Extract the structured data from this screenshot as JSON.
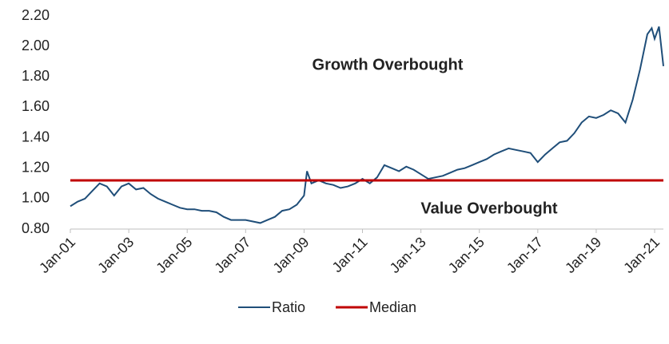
{
  "chart_data": {
    "type": "line",
    "annotations": [
      "Growth Overbought",
      "Value Overbought"
    ],
    "x": [
      2001.0,
      2001.25,
      2001.5,
      2001.75,
      2002.0,
      2002.25,
      2002.5,
      2002.75,
      2003.0,
      2003.25,
      2003.5,
      2003.75,
      2004.0,
      2004.25,
      2004.5,
      2004.75,
      2005.0,
      2005.25,
      2005.5,
      2005.75,
      2006.0,
      2006.25,
      2006.5,
      2006.75,
      2007.0,
      2007.25,
      2007.5,
      2007.75,
      2008.0,
      2008.25,
      2008.5,
      2008.75,
      2009.0,
      2009.1,
      2009.25,
      2009.5,
      2009.75,
      2010.0,
      2010.25,
      2010.5,
      2010.75,
      2011.0,
      2011.25,
      2011.5,
      2011.75,
      2012.0,
      2012.25,
      2012.5,
      2012.75,
      2013.0,
      2013.25,
      2013.5,
      2013.75,
      2014.0,
      2014.25,
      2014.5,
      2014.75,
      2015.0,
      2015.25,
      2015.5,
      2015.75,
      2016.0,
      2016.25,
      2016.5,
      2016.75,
      2017.0,
      2017.25,
      2017.5,
      2017.75,
      2018.0,
      2018.25,
      2018.5,
      2018.75,
      2019.0,
      2019.25,
      2019.5,
      2019.75,
      2020.0,
      2020.25,
      2020.5,
      2020.75,
      2020.9,
      2021.0,
      2021.15,
      2021.3
    ],
    "series": [
      {
        "name": "Ratio",
        "color": "#1f4e79",
        "values": [
          0.95,
          0.98,
          1.0,
          1.05,
          1.1,
          1.08,
          1.02,
          1.08,
          1.1,
          1.06,
          1.07,
          1.03,
          1.0,
          0.98,
          0.96,
          0.94,
          0.93,
          0.93,
          0.92,
          0.92,
          0.91,
          0.88,
          0.86,
          0.86,
          0.86,
          0.85,
          0.84,
          0.86,
          0.88,
          0.92,
          0.93,
          0.96,
          1.02,
          1.18,
          1.1,
          1.12,
          1.1,
          1.09,
          1.07,
          1.08,
          1.1,
          1.13,
          1.1,
          1.14,
          1.22,
          1.2,
          1.18,
          1.21,
          1.19,
          1.16,
          1.13,
          1.14,
          1.15,
          1.17,
          1.19,
          1.2,
          1.22,
          1.24,
          1.26,
          1.29,
          1.31,
          1.33,
          1.32,
          1.31,
          1.3,
          1.24,
          1.29,
          1.33,
          1.37,
          1.38,
          1.43,
          1.5,
          1.54,
          1.53,
          1.55,
          1.58,
          1.56,
          1.5,
          1.65,
          1.85,
          2.08,
          2.12,
          2.05,
          2.13,
          1.87
        ]
      },
      {
        "name": "Median",
        "color": "#c00000",
        "values": [
          1.12,
          1.12,
          1.12,
          1.12,
          1.12,
          1.12,
          1.12,
          1.12,
          1.12,
          1.12,
          1.12,
          1.12,
          1.12,
          1.12,
          1.12,
          1.12,
          1.12,
          1.12,
          1.12,
          1.12,
          1.12,
          1.12,
          1.12,
          1.12,
          1.12,
          1.12,
          1.12,
          1.12,
          1.12,
          1.12,
          1.12,
          1.12,
          1.12,
          1.12,
          1.12,
          1.12,
          1.12,
          1.12,
          1.12,
          1.12,
          1.12,
          1.12,
          1.12,
          1.12,
          1.12,
          1.12,
          1.12,
          1.12,
          1.12,
          1.12,
          1.12,
          1.12,
          1.12,
          1.12,
          1.12,
          1.12,
          1.12,
          1.12,
          1.12,
          1.12,
          1.12,
          1.12,
          1.12,
          1.12,
          1.12,
          1.12,
          1.12,
          1.12,
          1.12,
          1.12,
          1.12,
          1.12,
          1.12,
          1.12,
          1.12,
          1.12,
          1.12,
          1.12,
          1.12,
          1.12,
          1.12,
          1.12,
          1.12,
          1.12,
          1.12
        ]
      }
    ],
    "xlim": [
      2001,
      2021.3
    ],
    "xticks": [
      {
        "value": 2001,
        "label": "Jan-01"
      },
      {
        "value": 2003,
        "label": "Jan-03"
      },
      {
        "value": 2005,
        "label": "Jan-05"
      },
      {
        "value": 2007,
        "label": "Jan-07"
      },
      {
        "value": 2009,
        "label": "Jan-09"
      },
      {
        "value": 2011,
        "label": "Jan-11"
      },
      {
        "value": 2013,
        "label": "Jan-13"
      },
      {
        "value": 2015,
        "label": "Jan-15"
      },
      {
        "value": 2017,
        "label": "Jan-17"
      },
      {
        "value": 2019,
        "label": "Jan-19"
      },
      {
        "value": 2021,
        "label": "Jan-21"
      }
    ],
    "ylim": [
      0.8,
      2.2
    ],
    "yticks": [
      {
        "value": 0.8,
        "label": "0.80"
      },
      {
        "value": 1.0,
        "label": "1.00"
      },
      {
        "value": 1.2,
        "label": "1.20"
      },
      {
        "value": 1.4,
        "label": "1.40"
      },
      {
        "value": 1.6,
        "label": "1.60"
      },
      {
        "value": 1.8,
        "label": "1.80"
      },
      {
        "value": 2.0,
        "label": "2.00"
      },
      {
        "value": 2.2,
        "label": "2.20"
      }
    ],
    "annotation_color": "#a00000"
  }
}
